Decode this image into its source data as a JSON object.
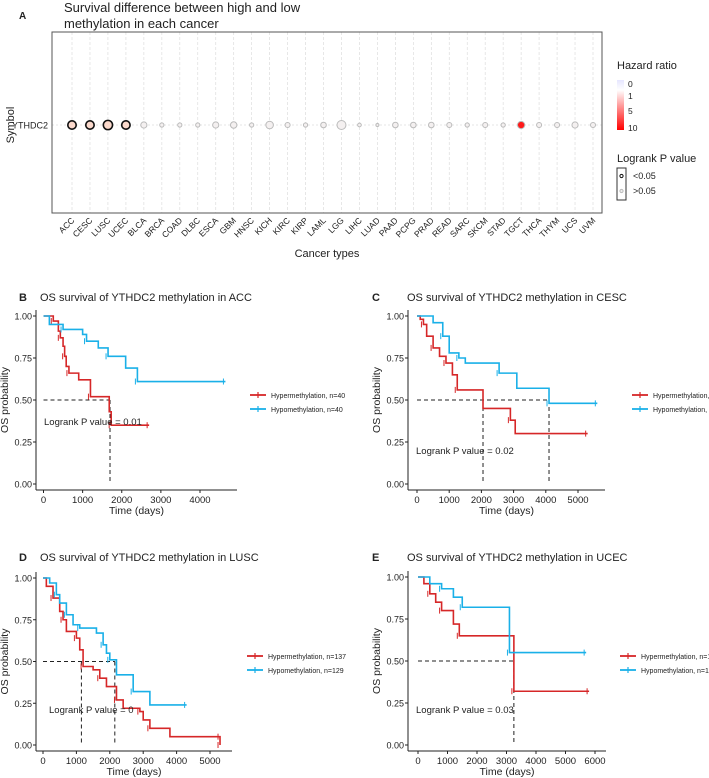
{
  "chart_data": [
    {
      "type": "scatter",
      "panel_label": "A",
      "title_line1": "Survival difference between high and low",
      "title_line2": "methylation in each cancer",
      "xlabel": "Cancer types",
      "ylabel": "Symbol",
      "y_category": "YTHDC2",
      "grid": true,
      "categories": [
        "ACC",
        "CESC",
        "LUSC",
        "UCEC",
        "BLCA",
        "BRCA",
        "COAD",
        "DLBC",
        "ESCA",
        "GBM",
        "HNSC",
        "KICH",
        "KIRC",
        "KIRP",
        "LAML",
        "LGG",
        "LIHC",
        "LUAD",
        "PAAD",
        "PCPG",
        "PRAD",
        "READ",
        "SARC",
        "SKCM",
        "STAD",
        "TGCT",
        "THCA",
        "THYM",
        "UCS",
        "UVM"
      ],
      "hazard_ratio": [
        1.8,
        1.9,
        1.6,
        1.9,
        1.1,
        1.0,
        1.0,
        1.0,
        1.0,
        1.1,
        1.0,
        1.1,
        1.0,
        1.0,
        1.1,
        1.3,
        1.0,
        1.0,
        1.0,
        1.0,
        1.3,
        1.0,
        1.0,
        1.0,
        1.0,
        10,
        1.0,
        1.0,
        1.0,
        1.0
      ],
      "significant": [
        true,
        true,
        true,
        true,
        false,
        false,
        false,
        false,
        false,
        false,
        false,
        false,
        false,
        false,
        false,
        false,
        false,
        false,
        false,
        false,
        false,
        false,
        false,
        false,
        false,
        false,
        false,
        false,
        false,
        false
      ],
      "point_size": [
        3,
        3,
        3.3,
        3,
        2.2,
        1.5,
        1.5,
        1.5,
        2.2,
        2.3,
        1.5,
        2.7,
        1.8,
        1.5,
        2,
        3.2,
        1.3,
        1.1,
        2,
        2,
        2,
        1.8,
        1.5,
        1.8,
        1.5,
        2.6,
        1.8,
        1.8,
        2.2,
        1.8
      ],
      "legend": {
        "color_title": "Hazard ratio",
        "color_ticks": [
          "0",
          "1",
          "5",
          "10"
        ],
        "size_title": "Logrank P value",
        "size_items": [
          "<0.05",
          ">0.05"
        ],
        "placement": "right"
      },
      "colors": {
        "low": "#e8e8ff",
        "mid": "#ffffff",
        "high": "#ff0000"
      }
    },
    {
      "type": "line",
      "panel_label": "B",
      "title": "OS survival of YTHDC2 methylation in ACC",
      "xlabel": "Time (days)",
      "ylabel": "OS probability",
      "xticks": [
        "0",
        "1000",
        "2000",
        "3000",
        "4000"
      ],
      "xlim": [
        0,
        4700
      ],
      "yticks": [
        "0.00",
        "0.25",
        "0.50",
        "0.75",
        "1.00"
      ],
      "ylim": [
        0,
        1
      ],
      "annotation": "Logrank P value = 0.01",
      "medians": [
        1700
      ],
      "series": [
        {
          "name": "Hypermethylation, n=40",
          "color": "#d62728",
          "points": [
            [
              0,
              1
            ],
            [
              200,
              1
            ],
            [
              250,
              0.97
            ],
            [
              380,
              0.91
            ],
            [
              430,
              0.87
            ],
            [
              500,
              0.82
            ],
            [
              540,
              0.76
            ],
            [
              580,
              0.7
            ],
            [
              650,
              0.66
            ],
            [
              900,
              0.62
            ],
            [
              1200,
              0.52
            ],
            [
              1680,
              0.43
            ],
            [
              1730,
              0.35
            ],
            [
              2700,
              0.35
            ]
          ]
        },
        {
          "name": "Hypomethylation, n=40",
          "color": "#1ab0e8",
          "points": [
            [
              0,
              1
            ],
            [
              150,
              0.95
            ],
            [
              500,
              0.92
            ],
            [
              1000,
              0.89
            ],
            [
              1100,
              0.85
            ],
            [
              1400,
              0.81
            ],
            [
              1650,
              0.76
            ],
            [
              2100,
              0.69
            ],
            [
              2400,
              0.61
            ],
            [
              4650,
              0.61
            ]
          ]
        }
      ]
    },
    {
      "type": "line",
      "panel_label": "C",
      "title": "OS survival of YTHDC2 methylation in CESC",
      "xlabel": "Time (days)",
      "ylabel": "OS probability",
      "xticks": [
        "0",
        "1000",
        "2000",
        "3000",
        "4000",
        "5000"
      ],
      "xlim": [
        0,
        5600
      ],
      "yticks": [
        "0.00",
        "0.25",
        "0.50",
        "0.75",
        "1.00"
      ],
      "ylim": [
        0,
        1
      ],
      "annotation": "Logrank P value = 0.02",
      "medians": [
        2050,
        4100
      ],
      "series": [
        {
          "name": "Hypermethylation, n=115",
          "color": "#d62728",
          "points": [
            [
              0,
              1
            ],
            [
              100,
              0.98
            ],
            [
              200,
              0.95
            ],
            [
              300,
              0.88
            ],
            [
              500,
              0.81
            ],
            [
              700,
              0.76
            ],
            [
              900,
              0.72
            ],
            [
              1100,
              0.65
            ],
            [
              1250,
              0.56
            ],
            [
              2050,
              0.45
            ],
            [
              2900,
              0.38
            ],
            [
              3050,
              0.3
            ],
            [
              5300,
              0.3
            ]
          ]
        },
        {
          "name": "Hypomethylation, n=109",
          "color": "#1ab0e8",
          "points": [
            [
              0,
              1
            ],
            [
              500,
              0.96
            ],
            [
              800,
              0.88
            ],
            [
              1000,
              0.78
            ],
            [
              1300,
              0.75
            ],
            [
              1500,
              0.72
            ],
            [
              2550,
              0.66
            ],
            [
              3100,
              0.57
            ],
            [
              4100,
              0.48
            ],
            [
              5600,
              0.48
            ]
          ]
        }
      ]
    },
    {
      "type": "line",
      "panel_label": "D",
      "title": "OS survival of YTHDC2 methylation in LUSC",
      "xlabel": "Time (days)",
      "ylabel": "OS probability",
      "xticks": [
        "0",
        "1000",
        "2000",
        "3000",
        "4000",
        "5000"
      ],
      "xlim": [
        0,
        5300
      ],
      "yticks": [
        "0.00",
        "0.25",
        "0.50",
        "0.75",
        "1.00"
      ],
      "ylim": [
        0,
        1
      ],
      "annotation": "Logrank P value = 0",
      "medians": [
        1150,
        2150
      ],
      "series": [
        {
          "name": "Hypermethylation, n=137",
          "color": "#d62728",
          "points": [
            [
              0,
              1
            ],
            [
              100,
              0.95
            ],
            [
              300,
              0.88
            ],
            [
              500,
              0.8
            ],
            [
              600,
              0.75
            ],
            [
              700,
              0.68
            ],
            [
              1000,
              0.64
            ],
            [
              1100,
              0.57
            ],
            [
              1200,
              0.47
            ],
            [
              1500,
              0.45
            ],
            [
              1700,
              0.4
            ],
            [
              1900,
              0.35
            ],
            [
              2200,
              0.27
            ],
            [
              2400,
              0.22
            ],
            [
              2900,
              0.2
            ],
            [
              3000,
              0.15
            ],
            [
              3200,
              0.1
            ],
            [
              3800,
              0.05
            ],
            [
              5300,
              0.05
            ],
            [
              5300,
              0
            ]
          ]
        },
        {
          "name": "Hypomethylation, n=129",
          "color": "#1ab0e8",
          "points": [
            [
              0,
              1
            ],
            [
              200,
              0.97
            ],
            [
              400,
              0.9
            ],
            [
              500,
              0.85
            ],
            [
              700,
              0.78
            ],
            [
              900,
              0.72
            ],
            [
              1100,
              0.7
            ],
            [
              1600,
              0.67
            ],
            [
              1800,
              0.6
            ],
            [
              1900,
              0.55
            ],
            [
              2000,
              0.51
            ],
            [
              2200,
              0.42
            ],
            [
              2700,
              0.32
            ],
            [
              3200,
              0.24
            ],
            [
              4300,
              0.24
            ]
          ]
        }
      ]
    },
    {
      "type": "line",
      "panel_label": "E",
      "title": "OS survival of YTHDC2 methylation in UCEC",
      "xlabel": "Time (days)",
      "ylabel": "OS probability",
      "xticks": [
        "0",
        "1000",
        "2000",
        "3000",
        "4000",
        "5000",
        "6000"
      ],
      "xlim": [
        0,
        6000
      ],
      "yticks": [
        "0.00",
        "0.25",
        "0.50",
        "0.75",
        "1.00"
      ],
      "ylim": [
        0,
        1
      ],
      "annotation": "Logrank P value = 0.03",
      "medians": [
        3250
      ],
      "series": [
        {
          "name": "Hypermethylation, n=192",
          "color": "#d62728",
          "points": [
            [
              0,
              1
            ],
            [
              200,
              0.96
            ],
            [
              400,
              0.9
            ],
            [
              600,
              0.85
            ],
            [
              800,
              0.8
            ],
            [
              1200,
              0.72
            ],
            [
              1400,
              0.65
            ],
            [
              3250,
              0.65
            ],
            [
              3250,
              0.32
            ],
            [
              5800,
              0.32
            ]
          ]
        },
        {
          "name": "Hypomethylation, n=191",
          "color": "#1ab0e8",
          "points": [
            [
              0,
              1
            ],
            [
              400,
              0.96
            ],
            [
              800,
              0.93
            ],
            [
              1200,
              0.88
            ],
            [
              1500,
              0.82
            ],
            [
              3100,
              0.82
            ],
            [
              3100,
              0.55
            ],
            [
              5700,
              0.55
            ]
          ]
        }
      ]
    }
  ]
}
